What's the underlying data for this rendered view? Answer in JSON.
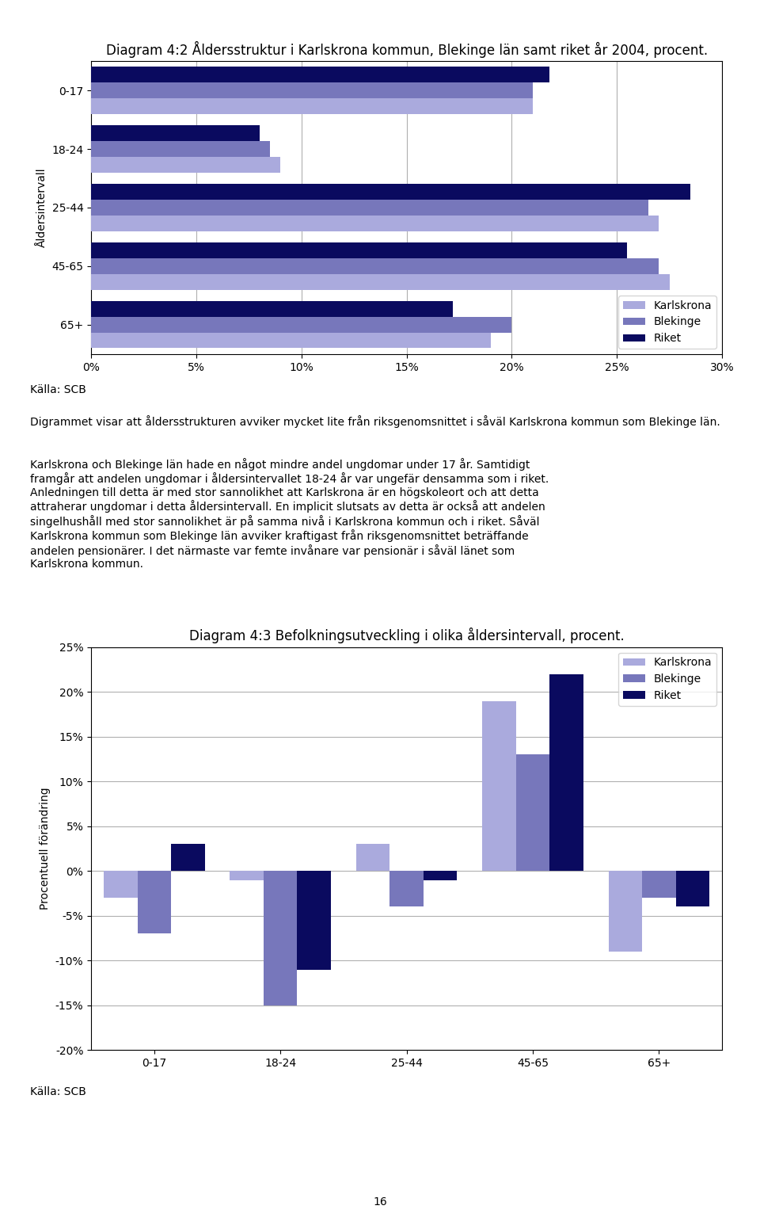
{
  "chart_data": [
    {
      "type": "bar",
      "orientation": "horizontal",
      "title": "Diagram 4:2 Åldersstruktur i Karlskrona kommun, Blekinge län samt riket år 2004, procent.",
      "y_label": "Åldersintervall",
      "categories": [
        "65+",
        "45-65",
        "25-44",
        "18-24",
        "0-17"
      ],
      "series": [
        {
          "name": "Karlskrona",
          "color": "#AAAADD",
          "values": [
            19.0,
            27.5,
            27.0,
            9.0,
            21.0
          ]
        },
        {
          "name": "Blekinge",
          "color": "#7777BB",
          "values": [
            20.0,
            27.0,
            26.5,
            8.5,
            21.0
          ]
        },
        {
          "name": "Riket",
          "color": "#0A0A5F",
          "values": [
            17.2,
            25.5,
            28.5,
            8.0,
            21.8
          ]
        }
      ],
      "xlim": [
        0,
        30
      ],
      "xticks": [
        {
          "value": 0,
          "label": "0%"
        },
        {
          "value": 5,
          "label": "5%"
        },
        {
          "value": 10,
          "label": "10%"
        },
        {
          "value": 15,
          "label": "15%"
        },
        {
          "value": 20,
          "label": "20%"
        },
        {
          "value": 25,
          "label": "25%"
        },
        {
          "value": 30,
          "label": "30%"
        }
      ],
      "grid": true,
      "legend": "lower right",
      "annotations": [
        "Källa: SCB",
        "Digrammet visar att åldersstrukturen avviker mycket lite från riksgenomsnittet i såväl Karlskrona kommun som Blekinge län.",
        "Karlskrona och Blekinge län hade en något mindre andel ungdomar under 17 år. Samtidigt\nframgår att andelen ungdomar i åldersintervallet 18-24 år var ungefär densamma som i riket.\nAnledningen till detta är med stor sannolikhet att Karlskrona är en högskoleort och att detta\nattraherar ungdomar i detta åldersintervall. En implicit slutsats av detta är också att andelen\nsingelhushåll med stor sannolikhet är på samma nivå i Karlskrona kommun och i riket. Såväl\nKarlskrona kommun som Blekinge län avviker kraftigast från riksgenomsnittet beträffande\nandelen pensionärer. I det närmaste var femte invånare var pensionär i såväl länet som\nKarlskrona kommun."
      ]
    },
    {
      "type": "bar",
      "title": "Diagram 4:3 Befolkningsutveckling i olika åldersintervall, procent.",
      "y_label": "Procentuell förändring",
      "categories": [
        "0-17",
        "18-24",
        "25-44",
        "45-65",
        "65+"
      ],
      "series": [
        {
          "name": "Karlskrona",
          "color": "#AAAADD",
          "values": [
            -3.0,
            -1.0,
            3.0,
            19.0,
            -9.0
          ]
        },
        {
          "name": "Blekinge",
          "color": "#7777BB",
          "values": [
            -7.0,
            -15.0,
            -4.0,
            13.0,
            -3.0
          ]
        },
        {
          "name": "Riket",
          "color": "#0A0A5F",
          "values": [
            3.0,
            -11.0,
            -1.0,
            22.0,
            -4.0
          ]
        }
      ],
      "ylim": [
        -20,
        25
      ],
      "yticks": [
        {
          "value": -20,
          "label": "-20%"
        },
        {
          "value": -15,
          "label": "-15%"
        },
        {
          "value": -10,
          "label": "-10%"
        },
        {
          "value": -5,
          "label": "-5%"
        },
        {
          "value": 0,
          "label": "0%"
        },
        {
          "value": 5,
          "label": "5%"
        },
        {
          "value": 10,
          "label": "10%"
        },
        {
          "value": 15,
          "label": "15%"
        },
        {
          "value": 20,
          "label": "20%"
        },
        {
          "value": 25,
          "label": "25%"
        }
      ],
      "grid": true,
      "legend": "upper right",
      "annotations": [
        "Källa: SCB",
        "16"
      ]
    }
  ]
}
